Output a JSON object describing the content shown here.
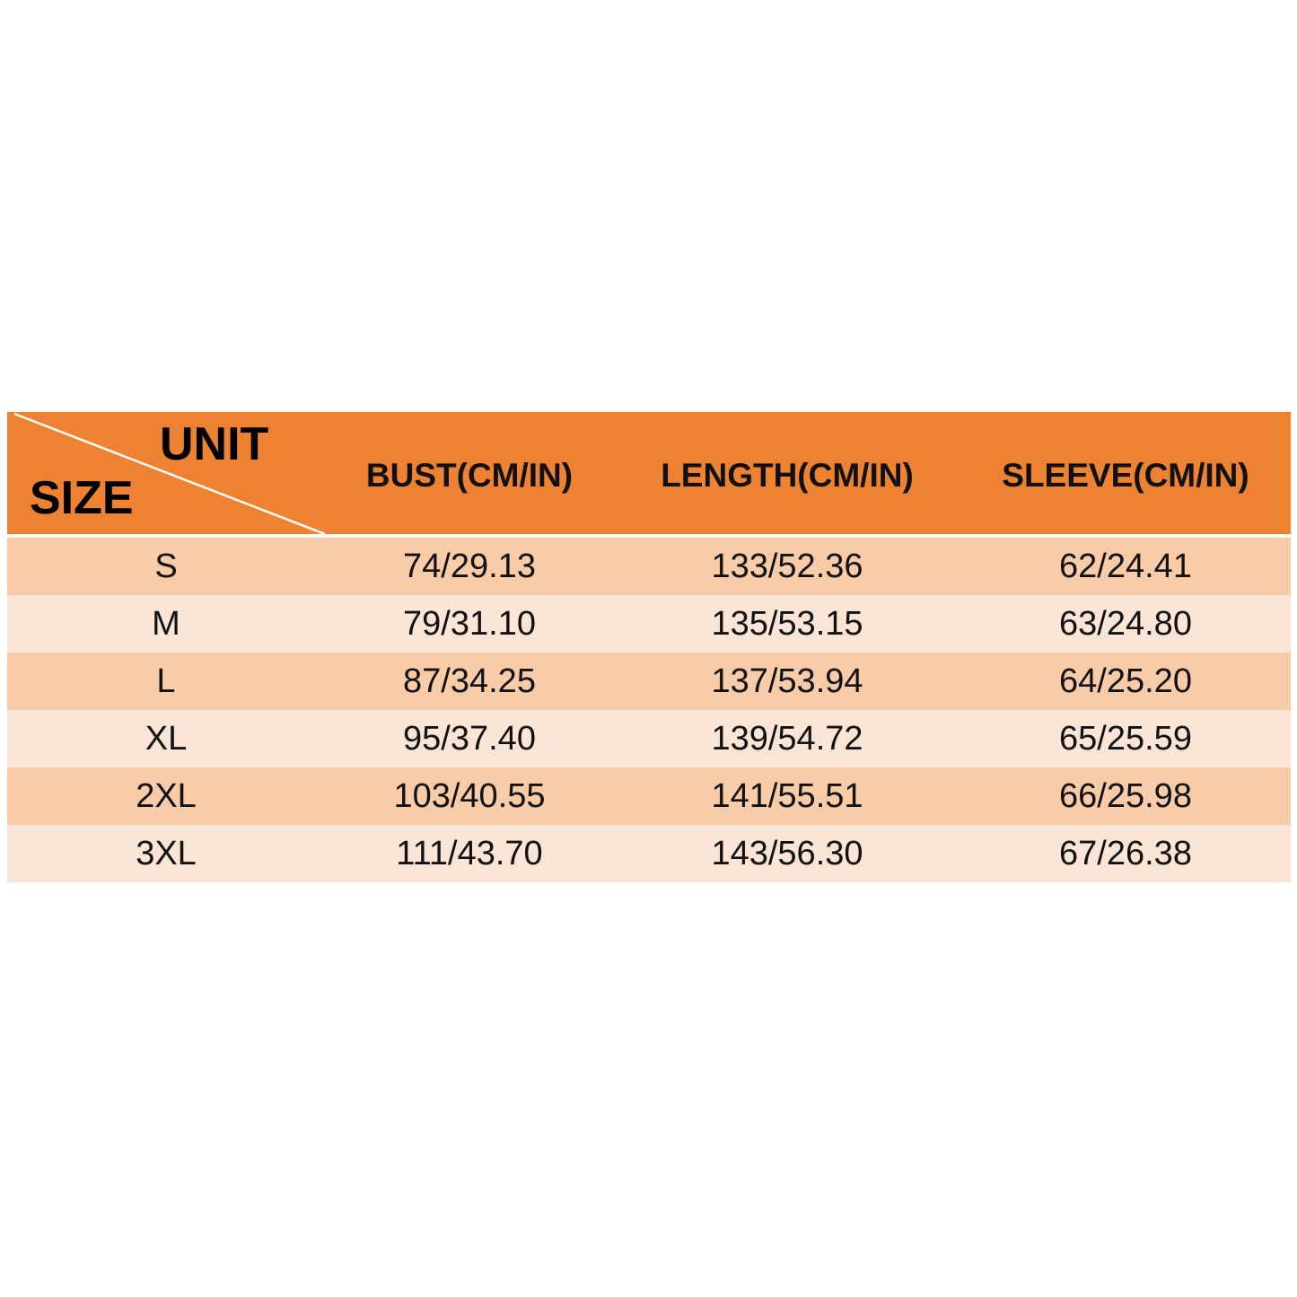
{
  "header": {
    "corner_top": "UNIT",
    "corner_bottom": "SIZE",
    "columns": [
      "BUST(CM/IN)",
      "LENGTH(CM/IN)",
      "SLEEVE(CM/IN)"
    ]
  },
  "colors": {
    "header": "#ED8232",
    "row_dark": "#F8CBA9",
    "row_light": "#FBE5D6"
  },
  "rows": [
    {
      "size": "S",
      "bust": "74/29.13",
      "length": "133/52.36",
      "sleeve": "62/24.41"
    },
    {
      "size": "M",
      "bust": "79/31.10",
      "length": "135/53.15",
      "sleeve": "63/24.80"
    },
    {
      "size": "L",
      "bust": "87/34.25",
      "length": "137/53.94",
      "sleeve": "64/25.20"
    },
    {
      "size": "XL",
      "bust": "95/37.40",
      "length": "139/54.72",
      "sleeve": "65/25.59"
    },
    {
      "size": "2XL",
      "bust": "103/40.55",
      "length": "141/55.51",
      "sleeve": "66/25.98"
    },
    {
      "size": "3XL",
      "bust": "111/43.70",
      "length": "143/56.30",
      "sleeve": "67/26.38"
    }
  ]
}
